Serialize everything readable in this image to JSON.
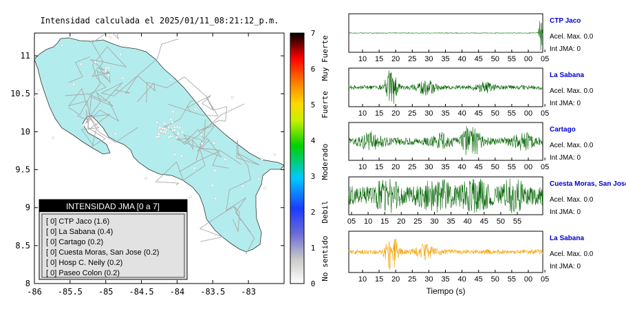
{
  "map": {
    "title": "Intensidad calculada el 2025/01/11_08:21:12_p.m.",
    "x_ticks": [
      "-86",
      "-85.5",
      "-85",
      "-84.5",
      "-84",
      "-83.5",
      "-83"
    ],
    "y_ticks": [
      "11",
      "10.5",
      "10",
      "9.5",
      "9",
      "8.5",
      "8"
    ],
    "xlim": [
      -86,
      -82.5
    ],
    "ylim": [
      8,
      11.3
    ],
    "land_color": "#b3ecec",
    "road_color": "#a8a8a8",
    "legend": {
      "title": "INTENSIDAD JMA [0 a 7]",
      "items": [
        "[ 0]  CTP Jaco (1.6)",
        "[ 0]  La Sabana (0.4)",
        "[ 0]  Cartago (0.2)",
        "[ 0]  Cuesta Moras, San Jose (0.2)",
        "[ 0]  Hosp C. Neily (0.2)",
        "[ 0]  Paseo Colon (0.2)"
      ]
    }
  },
  "colorbar": {
    "ticks": [
      "7",
      "6",
      "5",
      "4",
      "3",
      "2",
      "1",
      "0"
    ],
    "range": [
      0,
      7
    ],
    "labels": [
      "Muy Fuerte",
      "Fuerte",
      "Moderado",
      "Debil",
      "No sentido"
    ]
  },
  "waveforms": {
    "xlabel": "Tiempo (s)",
    "panels": [
      {
        "name": "CTP Jaco",
        "acel": "Acel. Max. 0.0",
        "int": "Int JMA: 0",
        "color": "#1a7a1a"
      },
      {
        "name": "La Sabana",
        "acel": "Acel. Max. 0.0",
        "int": "Int JMA: 0",
        "color": "#006400"
      },
      {
        "name": "Cartago",
        "acel": "Acel. Max. 0.0",
        "int": "Int JMA: 0",
        "color": "#006400"
      },
      {
        "name": "Cuesta Moras, San Jose",
        "acel": "Acel. Max. 0.0",
        "int": "Int JMA: 0",
        "color": "#006400"
      },
      {
        "name": "La Sabana",
        "acel": "Acel. Max. 0.0",
        "int": "Int JMA: 0",
        "color": "#f5a000"
      }
    ],
    "ticks_a": [
      "10",
      "15",
      "20",
      "25",
      "30",
      "35",
      "40",
      "45",
      "50",
      "55",
      "00",
      "05"
    ],
    "ticks_b": [
      "05",
      "10",
      "15",
      "20",
      "25",
      "30",
      "35",
      "40",
      "45",
      "50",
      "55"
    ],
    "name_color": "#0000cc"
  },
  "chart_data": [
    {
      "type": "heatmap",
      "title": "Intensidad calculada el 2025/01/11_08:21:12_p.m.",
      "xlim": [
        -86,
        -82.5
      ],
      "ylim": [
        8,
        11.3
      ],
      "color_scale": [
        0,
        7
      ],
      "legend_title": "INTENSIDAD JMA [0 a 7]",
      "stations": [
        {
          "name": "CTP Jaco",
          "intensity": 1.6,
          "class": 0
        },
        {
          "name": "La Sabana",
          "intensity": 0.4,
          "class": 0
        },
        {
          "name": "Cartago",
          "intensity": 0.2,
          "class": 0
        },
        {
          "name": "Cuesta Moras, San Jose",
          "intensity": 0.2,
          "class": 0
        },
        {
          "name": "Hosp C. Neily",
          "intensity": 0.2,
          "class": 0
        },
        {
          "name": "Paseo Colon",
          "intensity": 0.2,
          "class": 0
        }
      ]
    },
    {
      "type": "line",
      "xlabel": "Tiempo (s)",
      "series": [
        {
          "name": "CTP Jaco",
          "max_accel": 0.0,
          "int_jma": 0
        },
        {
          "name": "La Sabana",
          "max_accel": 0.0,
          "int_jma": 0
        },
        {
          "name": "Cartago",
          "max_accel": 0.0,
          "int_jma": 0
        },
        {
          "name": "Cuesta Moras, San Jose",
          "max_accel": 0.0,
          "int_jma": 0
        },
        {
          "name": "La Sabana",
          "max_accel": 0.0,
          "int_jma": 0
        }
      ]
    }
  ]
}
